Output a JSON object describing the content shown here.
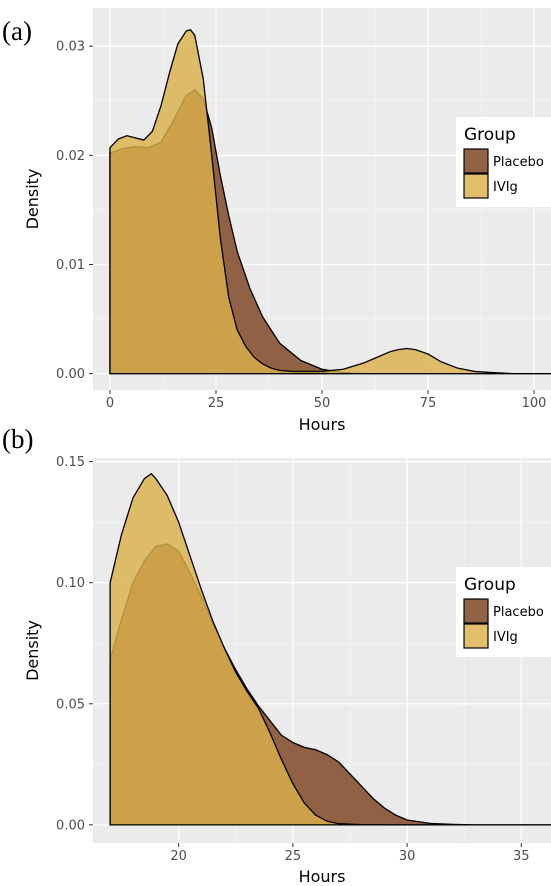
{
  "chart_data": [
    {
      "panel_label": "(a)",
      "type": "area",
      "xlabel": "Hours",
      "ylabel": "Density",
      "xlim": [
        -4,
        104
      ],
      "ylim": [
        -0.0015,
        0.0335
      ],
      "xticks": [
        0,
        25,
        50,
        75,
        100
      ],
      "yticks": [
        0.0,
        0.01,
        0.02,
        0.03
      ],
      "ytick_labels": [
        "0.00",
        "0.01",
        "0.02",
        "0.03"
      ],
      "grid": true,
      "legend": {
        "title": "Group",
        "position": "right",
        "entries": [
          "Placebo",
          "IVIg"
        ]
      },
      "series": [
        {
          "name": "Placebo",
          "color": "#8c5a3c",
          "x": [
            0,
            3,
            6,
            9,
            12,
            15,
            18,
            20,
            22,
            24,
            26,
            28,
            30,
            33,
            36,
            40,
            45,
            50,
            55,
            60,
            70,
            80,
            90,
            104
          ],
          "values": [
            0.0202,
            0.0206,
            0.0208,
            0.0207,
            0.0212,
            0.0232,
            0.0255,
            0.026,
            0.0252,
            0.0225,
            0.0182,
            0.0145,
            0.0112,
            0.0078,
            0.0052,
            0.0028,
            0.0012,
            0.0004,
            0.0001,
            0.0,
            0.0,
            0.0,
            0.0,
            0.0
          ]
        },
        {
          "name": "IVIg",
          "color": "#d9b04a",
          "x": [
            0,
            2,
            4,
            6,
            8,
            10,
            12,
            14,
            16,
            18,
            19,
            20,
            22,
            24,
            26,
            28,
            30,
            32,
            34,
            36,
            38,
            40,
            43,
            46,
            50,
            55,
            60,
            63,
            66,
            68,
            70,
            72,
            75,
            78,
            82,
            86,
            90,
            95,
            104
          ],
          "values": [
            0.0207,
            0.0215,
            0.0218,
            0.0216,
            0.0214,
            0.0222,
            0.0245,
            0.0275,
            0.0302,
            0.0314,
            0.0315,
            0.031,
            0.027,
            0.02,
            0.0125,
            0.007,
            0.004,
            0.0025,
            0.0015,
            0.0009,
            0.0005,
            0.0003,
            0.0002,
            0.0002,
            0.0002,
            0.0004,
            0.001,
            0.0015,
            0.002,
            0.0022,
            0.0023,
            0.0022,
            0.0018,
            0.0011,
            0.0005,
            0.0002,
            0.0001,
            0.0,
            0.0
          ]
        }
      ]
    },
    {
      "panel_label": "(b)",
      "type": "area",
      "xlabel": "Hours",
      "ylabel": "Density",
      "xlim": [
        16.25,
        36.3
      ],
      "ylim": [
        -0.0075,
        0.1515
      ],
      "xticks": [
        20,
        25,
        30,
        35
      ],
      "yticks": [
        0.0,
        0.05,
        0.1,
        0.15
      ],
      "ytick_labels": [
        "0.00",
        "0.05",
        "0.10",
        "0.15"
      ],
      "grid": true,
      "legend": {
        "title": "Group",
        "position": "right",
        "entries": [
          "Placebo",
          "IVIg"
        ]
      },
      "series": [
        {
          "name": "Placebo",
          "color": "#8c5a3c",
          "x": [
            17.0,
            17.5,
            18.0,
            18.5,
            19.0,
            19.5,
            20.0,
            20.5,
            21.0,
            21.5,
            22.0,
            22.5,
            23.0,
            23.5,
            24.0,
            24.5,
            25.0,
            25.5,
            26.0,
            26.5,
            27.0,
            27.5,
            28.0,
            28.5,
            29.0,
            29.5,
            30.0,
            31.0,
            32.0,
            33.0,
            34.0,
            36.3
          ],
          "values": [
            0.068,
            0.085,
            0.1,
            0.109,
            0.115,
            0.116,
            0.113,
            0.104,
            0.094,
            0.083,
            0.073,
            0.064,
            0.056,
            0.049,
            0.043,
            0.037,
            0.034,
            0.032,
            0.031,
            0.029,
            0.026,
            0.021,
            0.016,
            0.011,
            0.007,
            0.004,
            0.002,
            0.0006,
            0.0002,
            0.0,
            0.0,
            0.0
          ]
        },
        {
          "name": "IVIg",
          "color": "#d9b04a",
          "x": [
            17.0,
            17.5,
            18.0,
            18.5,
            18.8,
            19.0,
            19.5,
            20.0,
            20.5,
            21.0,
            21.5,
            22.0,
            22.5,
            23.0,
            23.5,
            24.0,
            24.5,
            25.0,
            25.5,
            26.0,
            26.5,
            27.0,
            28.0,
            29.0,
            30.0,
            36.3
          ],
          "values": [
            0.1,
            0.12,
            0.135,
            0.143,
            0.145,
            0.143,
            0.136,
            0.125,
            0.111,
            0.097,
            0.084,
            0.073,
            0.063,
            0.055,
            0.048,
            0.038,
            0.027,
            0.017,
            0.009,
            0.004,
            0.0015,
            0.0005,
            0.0001,
            0.0,
            0.0,
            0.0
          ]
        }
      ]
    }
  ]
}
